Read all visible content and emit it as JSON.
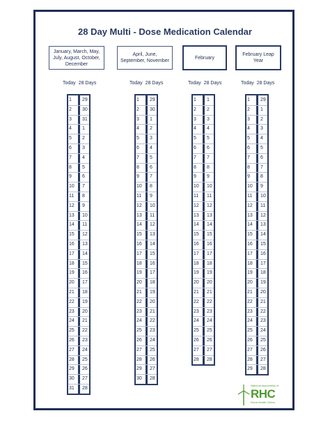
{
  "title": "28 Day Multi - Dose Medication Calendar",
  "headers": [
    "January, March, May, July, August, October, December",
    "April, June, September, November",
    "February",
    "February Leap Year"
  ],
  "columns": [
    {
      "today_label": "Today",
      "days_label": "28 Days",
      "rows": [
        [
          "1",
          "29"
        ],
        [
          "2",
          "30"
        ],
        [
          "3",
          "31"
        ],
        [
          "4",
          "1"
        ],
        [
          "5",
          "2"
        ],
        [
          "6",
          "3"
        ],
        [
          "7",
          "4"
        ],
        [
          "8",
          "5"
        ],
        [
          "9",
          "6"
        ],
        [
          "10",
          "7"
        ],
        [
          "11",
          "8"
        ],
        [
          "12",
          "9"
        ],
        [
          "13",
          "10"
        ],
        [
          "14",
          "11"
        ],
        [
          "15",
          "12"
        ],
        [
          "16",
          "13"
        ],
        [
          "17",
          "14"
        ],
        [
          "18",
          "15"
        ],
        [
          "19",
          "16"
        ],
        [
          "20",
          "17"
        ],
        [
          "21",
          "18"
        ],
        [
          "22",
          "19"
        ],
        [
          "23",
          "20"
        ],
        [
          "24",
          "21"
        ],
        [
          "25",
          "22"
        ],
        [
          "26",
          "23"
        ],
        [
          "27",
          "24"
        ],
        [
          "28",
          "25"
        ],
        [
          "29",
          "26"
        ],
        [
          "30",
          "27"
        ],
        [
          "31",
          "28"
        ]
      ]
    },
    {
      "today_label": "Today",
      "days_label": "28 Days",
      "rows": [
        [
          "1",
          "29"
        ],
        [
          "2",
          "30"
        ],
        [
          "3",
          "1"
        ],
        [
          "4",
          "2"
        ],
        [
          "5",
          "3"
        ],
        [
          "6",
          "4"
        ],
        [
          "7",
          "5"
        ],
        [
          "8",
          "6"
        ],
        [
          "9",
          "7"
        ],
        [
          "10",
          "8"
        ],
        [
          "11",
          "9"
        ],
        [
          "12",
          "10"
        ],
        [
          "13",
          "11"
        ],
        [
          "14",
          "12"
        ],
        [
          "15",
          "13"
        ],
        [
          "16",
          "14"
        ],
        [
          "17",
          "15"
        ],
        [
          "18",
          "16"
        ],
        [
          "19",
          "17"
        ],
        [
          "20",
          "18"
        ],
        [
          "21",
          "19"
        ],
        [
          "22",
          "20"
        ],
        [
          "23",
          "21"
        ],
        [
          "24",
          "22"
        ],
        [
          "25",
          "23"
        ],
        [
          "26",
          "24"
        ],
        [
          "27",
          "25"
        ],
        [
          "28",
          "26"
        ],
        [
          "29",
          "27"
        ],
        [
          "30",
          "28"
        ]
      ]
    },
    {
      "today_label": "Today",
      "days_label": "28 Days",
      "rows": [
        [
          "1",
          "1"
        ],
        [
          "2",
          "2"
        ],
        [
          "3",
          "3"
        ],
        [
          "4",
          "4"
        ],
        [
          "5",
          "5"
        ],
        [
          "6",
          "6"
        ],
        [
          "7",
          "7"
        ],
        [
          "8",
          "8"
        ],
        [
          "9",
          "9"
        ],
        [
          "10",
          "10"
        ],
        [
          "11",
          "11"
        ],
        [
          "12",
          "12"
        ],
        [
          "13",
          "13"
        ],
        [
          "14",
          "14"
        ],
        [
          "15",
          "15"
        ],
        [
          "16",
          "16"
        ],
        [
          "17",
          "17"
        ],
        [
          "18",
          "18"
        ],
        [
          "19",
          "19"
        ],
        [
          "20",
          "20"
        ],
        [
          "21",
          "21"
        ],
        [
          "22",
          "22"
        ],
        [
          "23",
          "23"
        ],
        [
          "24",
          "24"
        ],
        [
          "25",
          "25"
        ],
        [
          "26",
          "26"
        ],
        [
          "27",
          "27"
        ],
        [
          "28",
          "28"
        ]
      ]
    },
    {
      "today_label": "Today",
      "days_label": "28 Days",
      "rows": [
        [
          "1",
          "29"
        ],
        [
          "2",
          "1"
        ],
        [
          "3",
          "2"
        ],
        [
          "4",
          "3"
        ],
        [
          "5",
          "4"
        ],
        [
          "6",
          "5"
        ],
        [
          "7",
          "6"
        ],
        [
          "8",
          "7"
        ],
        [
          "9",
          "8"
        ],
        [
          "10",
          "9"
        ],
        [
          "11",
          "10"
        ],
        [
          "12",
          "11"
        ],
        [
          "13",
          "12"
        ],
        [
          "14",
          "13"
        ],
        [
          "15",
          "14"
        ],
        [
          "16",
          "15"
        ],
        [
          "17",
          "16"
        ],
        [
          "18",
          "17"
        ],
        [
          "19",
          "18"
        ],
        [
          "20",
          "19"
        ],
        [
          "21",
          "20"
        ],
        [
          "22",
          "21"
        ],
        [
          "23",
          "22"
        ],
        [
          "24",
          "23"
        ],
        [
          "25",
          "24"
        ],
        [
          "26",
          "25"
        ],
        [
          "27",
          "26"
        ],
        [
          "28",
          "27"
        ],
        [
          "29",
          "28"
        ]
      ]
    }
  ],
  "logo": {
    "tagline": "National Association of",
    "name": "RHC",
    "subline": "Rural Health Clinics",
    "color": "#4e9a2e"
  },
  "colors": {
    "frame": "#1f2d52",
    "title": "#2a3a62"
  }
}
